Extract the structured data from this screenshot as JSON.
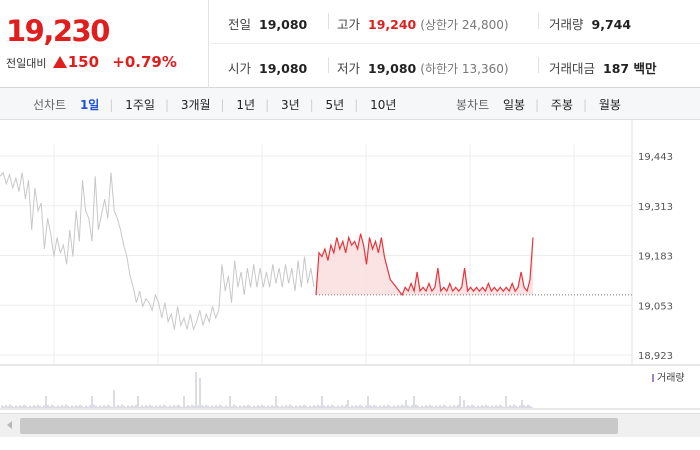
{
  "quote": {
    "price": "19,230",
    "change_label": "전일대비",
    "change_value": "150",
    "change_pct": "+0.79%",
    "direction": "up",
    "stats": {
      "prev_close": {
        "label": "전일",
        "value": "19,080"
      },
      "high": {
        "label": "고가",
        "value": "19,240",
        "sub": "(상한가 24,800)"
      },
      "volume": {
        "label": "거래량",
        "value": "9,744"
      },
      "open": {
        "label": "시가",
        "value": "19,080"
      },
      "low": {
        "label": "저가",
        "value": "19,080",
        "sub": "(하한가 13,360)"
      },
      "amount": {
        "label": "거래대금",
        "value": "187 백만"
      }
    }
  },
  "toolbar": {
    "line_chart_label": "선차트",
    "line_periods": [
      "1일",
      "1주일",
      "3개월",
      "1년",
      "3년",
      "5년",
      "10년"
    ],
    "active_period": "1일",
    "candle_chart_label": "봉차트",
    "candle_periods": [
      "일봉",
      "주봉",
      "월봉"
    ]
  },
  "chart_data": {
    "type": "line",
    "y_ticks": [
      "19,443",
      "19,313",
      "19,183",
      "19,053",
      "18,923"
    ],
    "ylim": [
      18923,
      19443
    ],
    "prev_close": 19080,
    "volume_legend": "거래량",
    "colors": {
      "prior_days": "#c8c8c8",
      "today": "#e8333a",
      "today_fill": "#fbdcdc",
      "volume": "#b8b8c8"
    },
    "series": [
      {
        "values": [
          19390,
          19400,
          19370,
          19395,
          19360,
          19385,
          19350,
          19400,
          19330,
          19380,
          19250,
          19360,
          19300,
          19320,
          19200,
          19280,
          19240,
          19180,
          19230,
          19190,
          19210,
          19160,
          19250,
          19180,
          19300,
          19220,
          19380,
          19300,
          19280,
          19220,
          19390,
          19250,
          19290,
          19330,
          19280,
          19400,
          19300,
          19280,
          19250,
          19210,
          19180,
          19130,
          19100,
          19060,
          19090,
          19050,
          19070,
          19060,
          19040,
          19080,
          19060,
          19020,
          19060,
          19010,
          19030,
          18990,
          19050,
          19000,
          19020,
          18990,
          19030,
          18990,
          19010,
          19040,
          19000,
          19030,
          19010,
          19050,
          19020,
          19040,
          19160,
          19090,
          19130,
          19060,
          19170,
          19100,
          19140,
          19080,
          19150,
          19100,
          19160,
          19100,
          19150,
          19100,
          19140,
          19100,
          19160,
          19110,
          19150,
          19100,
          19160,
          19110,
          19150,
          19090,
          19170,
          19100,
          19180,
          19110,
          19150,
          19100
        ]
      },
      {
        "values": [
          19080,
          19190,
          19180,
          19200,
          19170,
          19210,
          19190,
          19230,
          19200,
          19220,
          19190,
          19230,
          19210,
          19220,
          19200,
          19240,
          19210,
          19160,
          19230,
          19200,
          19220,
          19190,
          19230,
          19180,
          19150,
          19120,
          19110,
          19100,
          19090,
          19080,
          19100,
          19090,
          19110,
          19090,
          19140,
          19090,
          19100,
          19090,
          19110,
          19090,
          19100,
          19150,
          19090,
          19100,
          19090,
          19110,
          19090,
          19100,
          19090,
          19100,
          19150,
          19090,
          19100,
          19090,
          19100,
          19090,
          19100,
          19090,
          19110,
          19090,
          19100,
          19090,
          19100,
          19090,
          19100,
          19090,
          19110,
          19090,
          19100,
          19140,
          19100,
          19090,
          19120,
          19230
        ]
      }
    ]
  }
}
